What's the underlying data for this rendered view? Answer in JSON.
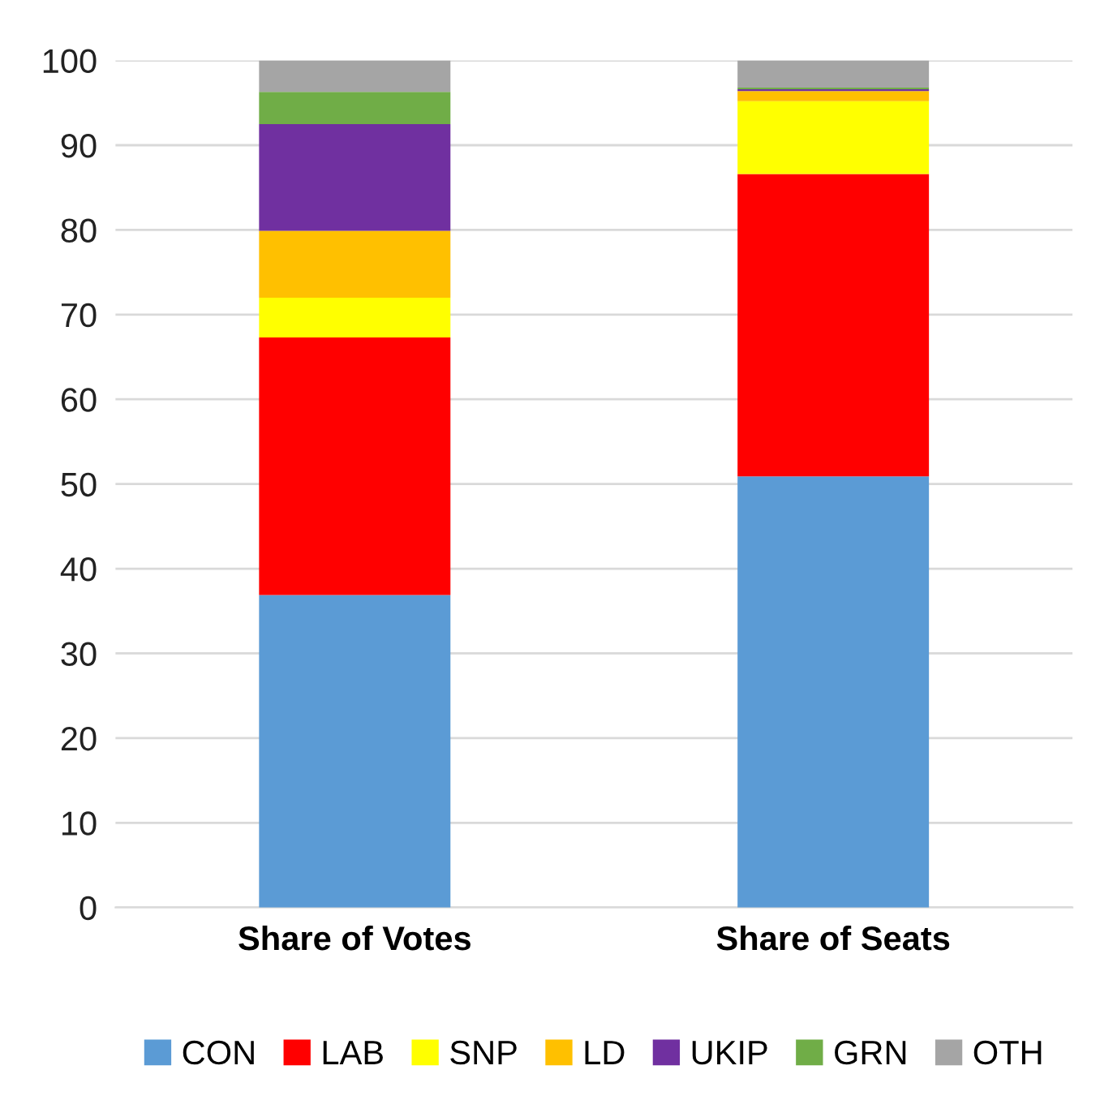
{
  "chart_data": {
    "type": "bar",
    "stacked": true,
    "categories": [
      "Share of Votes",
      "Share of Seats"
    ],
    "series": [
      {
        "name": "CON",
        "color": "#5b9bd5",
        "values": [
          36.9,
          50.9
        ]
      },
      {
        "name": "LAB",
        "color": "#ff0000",
        "values": [
          30.4,
          35.7
        ]
      },
      {
        "name": "SNP",
        "color": "#ffff00",
        "values": [
          4.7,
          8.6
        ]
      },
      {
        "name": "LD",
        "color": "#ffc000",
        "values": [
          7.9,
          1.2
        ]
      },
      {
        "name": "UKIP",
        "color": "#7030a0",
        "values": [
          12.6,
          0.2
        ]
      },
      {
        "name": "GRN",
        "color": "#70ad47",
        "values": [
          3.8,
          0.2
        ]
      },
      {
        "name": "OTH",
        "color": "#a5a5a5",
        "values": [
          3.7,
          3.2
        ]
      }
    ],
    "ylim": [
      0,
      100
    ],
    "yticks": [
      0,
      10,
      20,
      30,
      40,
      50,
      60,
      70,
      80,
      90,
      100
    ],
    "grid": "y",
    "legend": "bottom"
  }
}
